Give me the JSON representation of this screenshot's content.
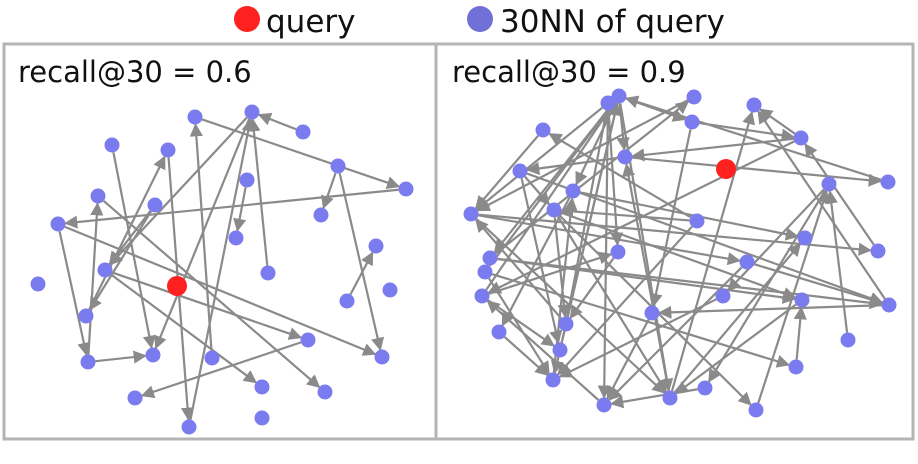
{
  "legend": {
    "query_label": "query",
    "nn_label": "30NN of query",
    "query_color": "#ff2020",
    "nn_color": "#7b7bf0"
  },
  "panels": [
    {
      "title": "recall@30 = 0.6"
    },
    {
      "title": "recall@30 = 0.9"
    }
  ],
  "colors": {
    "edge": "#8a8a8a",
    "frame": "#b4b4b4"
  }
}
